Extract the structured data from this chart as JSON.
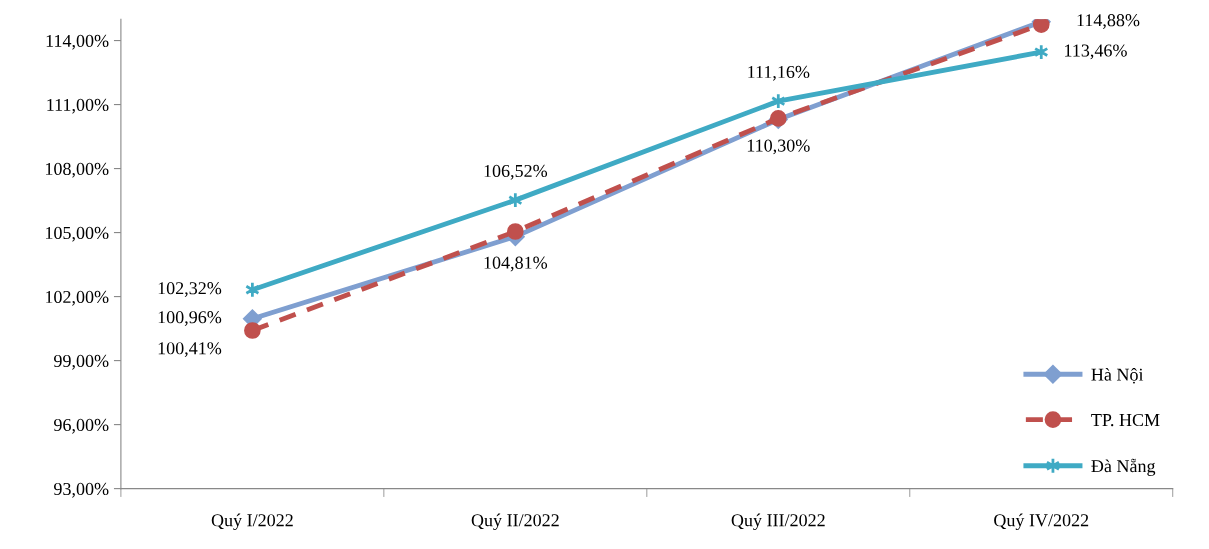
{
  "chart_data": {
    "type": "line",
    "categories": [
      "Quý I/2022",
      "Quý II/2022",
      "Quý III/2022",
      "Quý IV/2022"
    ],
    "series": [
      {
        "name": "Hà Nội",
        "color": "#7f9fd0",
        "marker": "diamond",
        "line_style": "solid",
        "values": [
          100.96,
          104.81,
          110.3,
          114.88
        ],
        "value_labels": [
          "100,96%",
          "104,81%",
          "110,30%",
          "114,88%"
        ]
      },
      {
        "name": "TP. HCM",
        "color": "#c0504d",
        "marker": "circle",
        "line_style": "dashed",
        "values": [
          100.41,
          105.05,
          110.35,
          114.75
        ],
        "value_labels": [
          "100,41%",
          null,
          null,
          null
        ]
      },
      {
        "name": "Đà Nẵng",
        "color": "#3faac4",
        "marker": "cross",
        "line_style": "solid",
        "values": [
          102.32,
          106.52,
          111.16,
          113.46
        ],
        "value_labels": [
          "102,32%",
          "106,52%",
          "111,16%",
          "113,46%"
        ]
      }
    ],
    "ylim": [
      93,
      115
    ],
    "yticks": [
      {
        "value": 93,
        "label": "93,00%"
      },
      {
        "value": 96,
        "label": "96,00%"
      },
      {
        "value": 99,
        "label": "99,00%"
      },
      {
        "value": 102,
        "label": "102,00%"
      },
      {
        "value": 105,
        "label": "105,00%"
      },
      {
        "value": 108,
        "label": "108,00%"
      },
      {
        "value": 111,
        "label": "111,00%"
      },
      {
        "value": 114,
        "label": "114,00%"
      }
    ],
    "grid": false,
    "legend": "bottom right"
  }
}
